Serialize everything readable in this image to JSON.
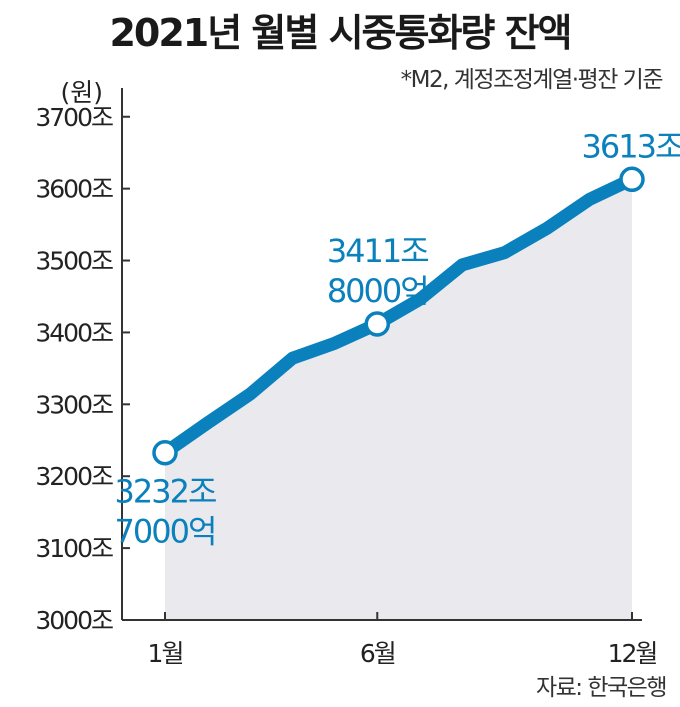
{
  "chart_data": {
    "type": "line",
    "title": "2021년 월별 시중통화량 잔액",
    "subtitle": "*M2, 계정조정계열·평잔 기준",
    "source": "자료: 한국은행",
    "ylabel": "(원)",
    "xlabel": "",
    "x_ticks": [
      "1월",
      "6월",
      "12월"
    ],
    "y_ticks": [
      "3000조",
      "3100조",
      "3200조",
      "3300조",
      "3400조",
      "3500조",
      "3600조",
      "3700조"
    ],
    "ylim": [
      3000,
      3740
    ],
    "xlim": [
      1,
      12
    ],
    "grid": false,
    "series": [
      {
        "x": [
          1,
          2,
          3,
          4,
          5,
          6,
          7,
          8,
          9,
          10,
          11,
          12
        ],
        "values": [
          3232.7,
          3274,
          3314,
          3364,
          3385,
          3411.8,
          3446,
          3494,
          3511,
          3545,
          3585,
          3613
        ]
      }
    ],
    "annotations": [
      {
        "x": 1,
        "value": 3232.7,
        "lines": [
          "3232조",
          "7000억"
        ],
        "placement": "below"
      },
      {
        "x": 6,
        "value": 3411.8,
        "lines": [
          "3411조",
          "8000억"
        ],
        "placement": "above"
      },
      {
        "x": 12,
        "value": 3613,
        "lines": [
          "3613조"
        ],
        "placement": "above"
      }
    ],
    "colors": {
      "line": "#0a80bd",
      "fill": "#eaeaee",
      "axis": "#333333",
      "marker_fill": "#ffffff",
      "annotation": "#0a80bd"
    }
  }
}
